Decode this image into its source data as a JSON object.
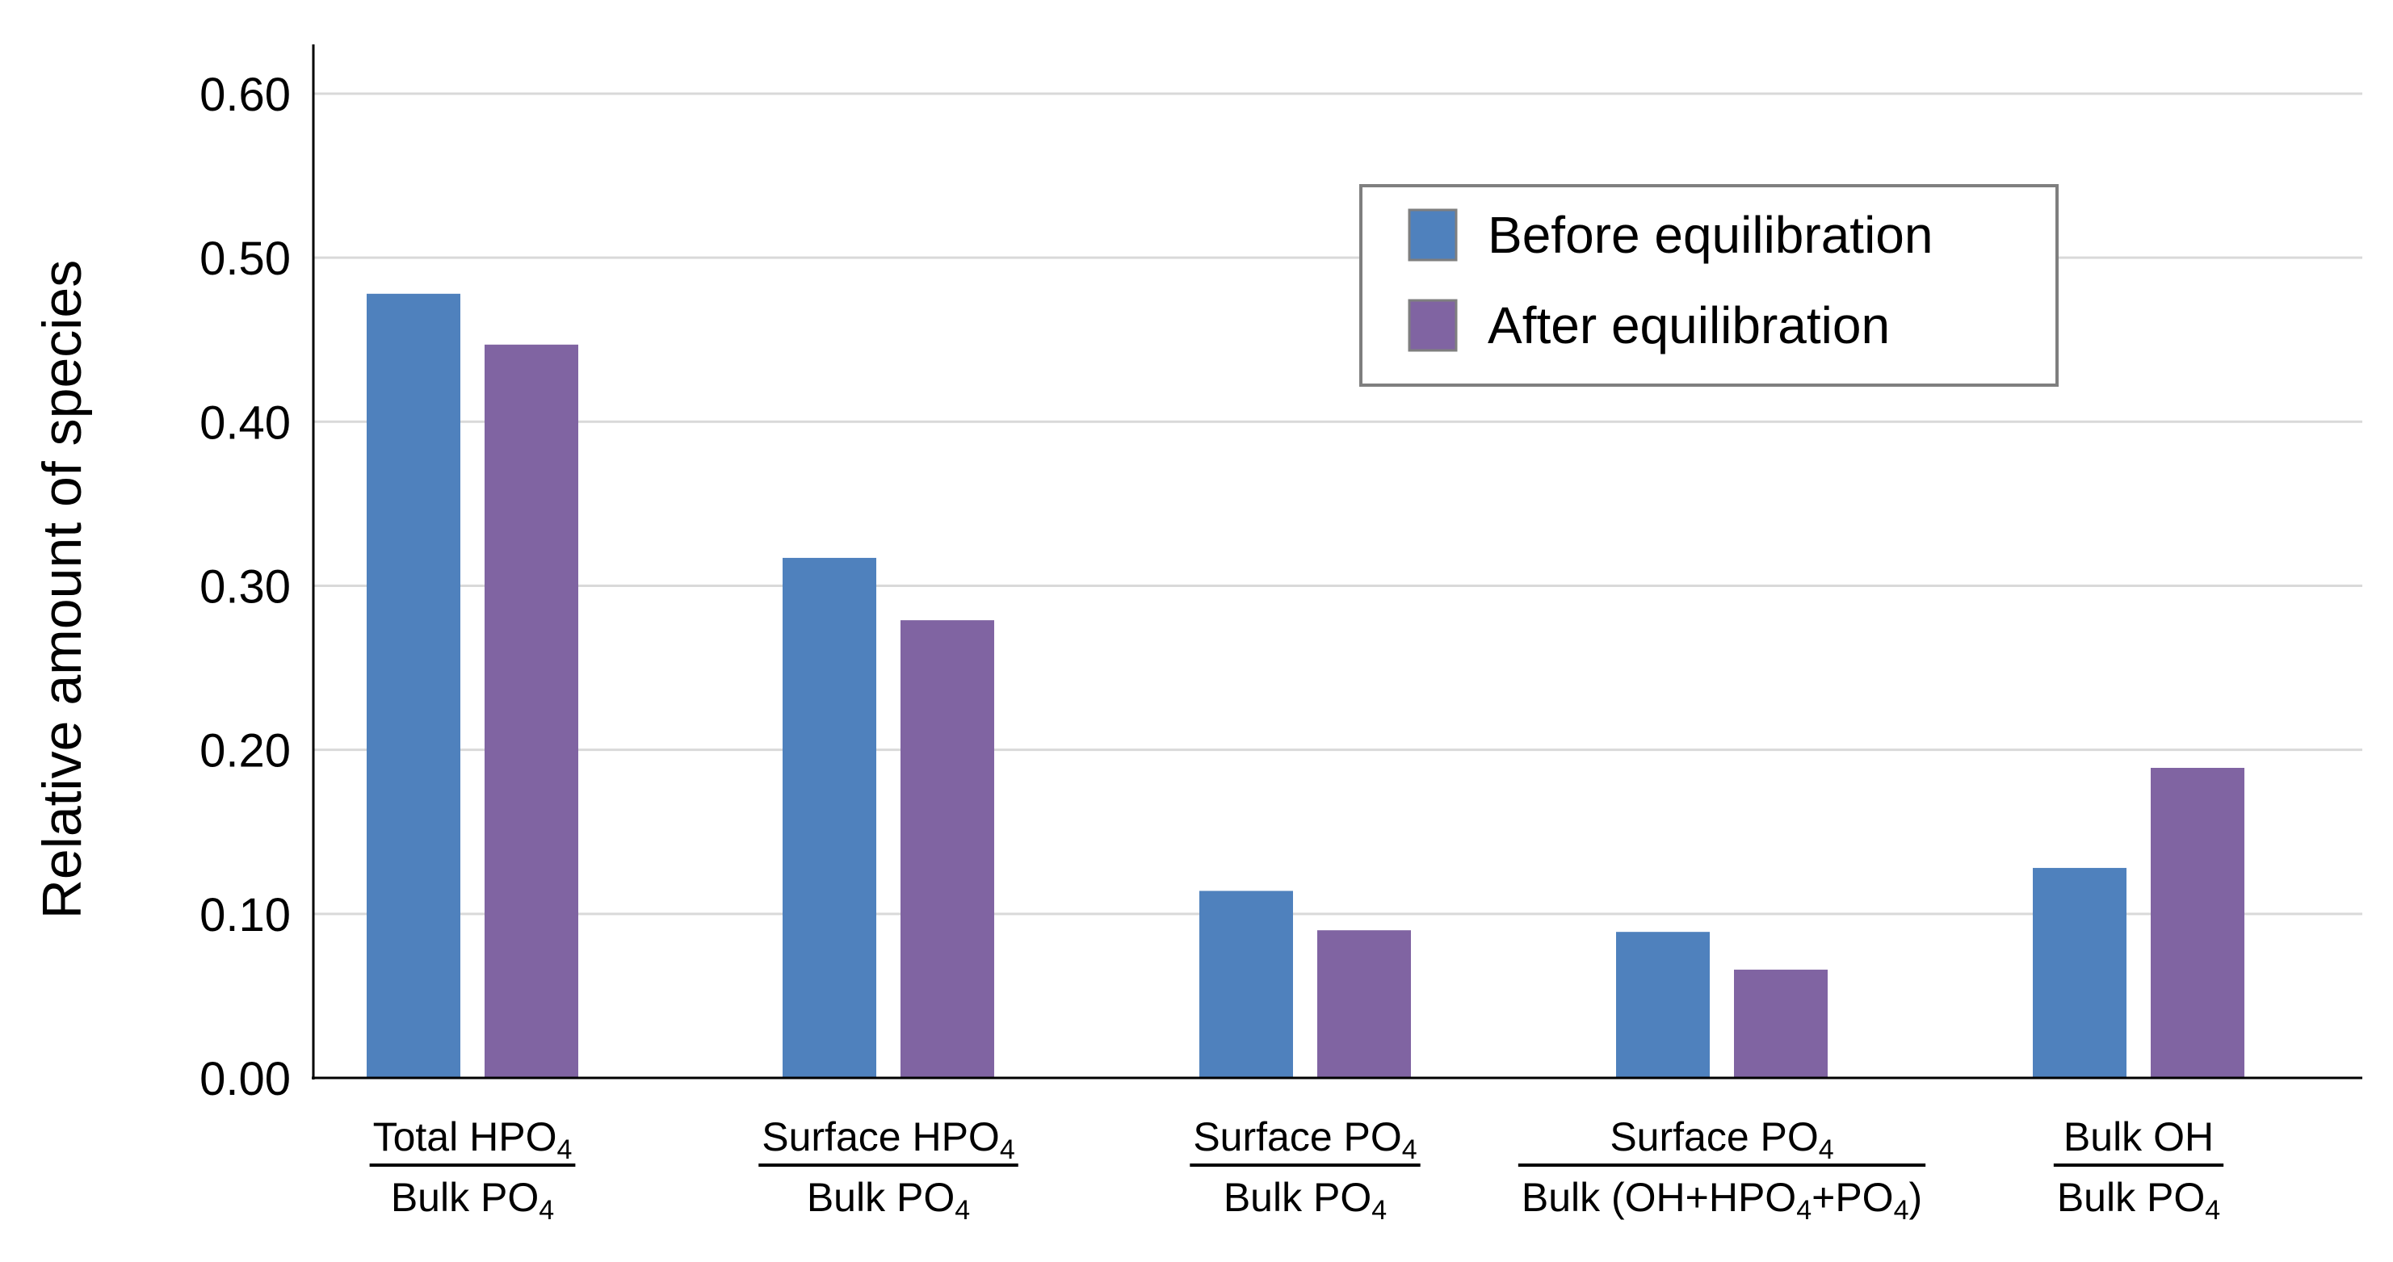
{
  "chart_data": {
    "type": "bar",
    "title": "",
    "xlabel": "",
    "ylabel": "Relative amount of species",
    "ylim": [
      0,
      0.63
    ],
    "yticks": [
      "0.00",
      "0.10",
      "0.20",
      "0.30",
      "0.40",
      "0.50",
      "0.60"
    ],
    "grid": true,
    "legend_position": "top-right",
    "categories": [
      {
        "numerator": "Total HPO",
        "numerator_sub": "4",
        "numerator_tail": "",
        "denominator": "Bulk PO",
        "denominator_sub": "4",
        "denominator_tail": ""
      },
      {
        "numerator": "Surface HPO",
        "numerator_sub": "4",
        "numerator_tail": "",
        "denominator": "Bulk PO",
        "denominator_sub": "4",
        "denominator_tail": ""
      },
      {
        "numerator": "Surface PO",
        "numerator_sub": "4",
        "numerator_tail": "",
        "denominator": "Bulk PO",
        "denominator_sub": "4",
        "denominator_tail": ""
      },
      {
        "numerator": "Surface PO",
        "numerator_sub": "4",
        "numerator_tail": "",
        "denominator": "Bulk (OH+HPO",
        "denominator_sub": "4",
        "denominator_tail": "+PO",
        "denominator_sub2": "4",
        "denominator_end": ")"
      },
      {
        "numerator": "Bulk OH",
        "numerator_sub": "",
        "numerator_tail": "",
        "denominator": "Bulk PO",
        "denominator_sub": "4",
        "denominator_tail": ""
      }
    ],
    "series": [
      {
        "name": "Before equilibration",
        "color": "#4f81bd",
        "values": [
          0.478,
          0.317,
          0.114,
          0.089,
          0.128
        ]
      },
      {
        "name": "After equilibration",
        "color": "#8064a2",
        "values": [
          0.447,
          0.279,
          0.09,
          0.066,
          0.189
        ]
      }
    ]
  }
}
